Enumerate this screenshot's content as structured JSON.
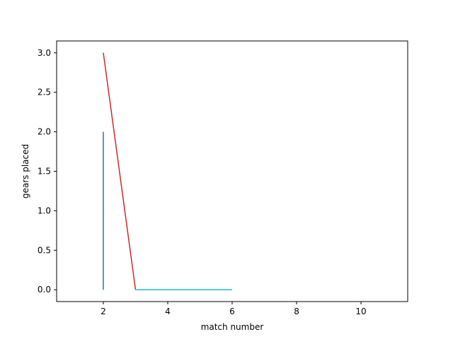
{
  "chart_data": {
    "type": "line",
    "title": "",
    "xlabel": "match number",
    "ylabel": "gears placed",
    "xlim": [
      0.55,
      11.45
    ],
    "ylim": [
      -0.15,
      3.15
    ],
    "xticks": [
      2,
      4,
      6,
      8,
      10
    ],
    "xtick_labels": [
      "2",
      "4",
      "6",
      "8",
      "10"
    ],
    "yticks": [
      0,
      0.5,
      1,
      1.5,
      2,
      2.5,
      3
    ],
    "ytick_labels": [
      "0.0",
      "0.5",
      "1.0",
      "1.5",
      "2.0",
      "2.5",
      "3.0"
    ],
    "grid": false,
    "series": [
      {
        "color": "#1f77b4",
        "x": [
          2,
          2
        ],
        "y": [
          0,
          2
        ]
      },
      {
        "color": "#d62728",
        "x": [
          2,
          3
        ],
        "y": [
          3,
          0
        ]
      },
      {
        "color": "#17becf",
        "x": [
          3,
          6
        ],
        "y": [
          0,
          0
        ]
      }
    ]
  }
}
